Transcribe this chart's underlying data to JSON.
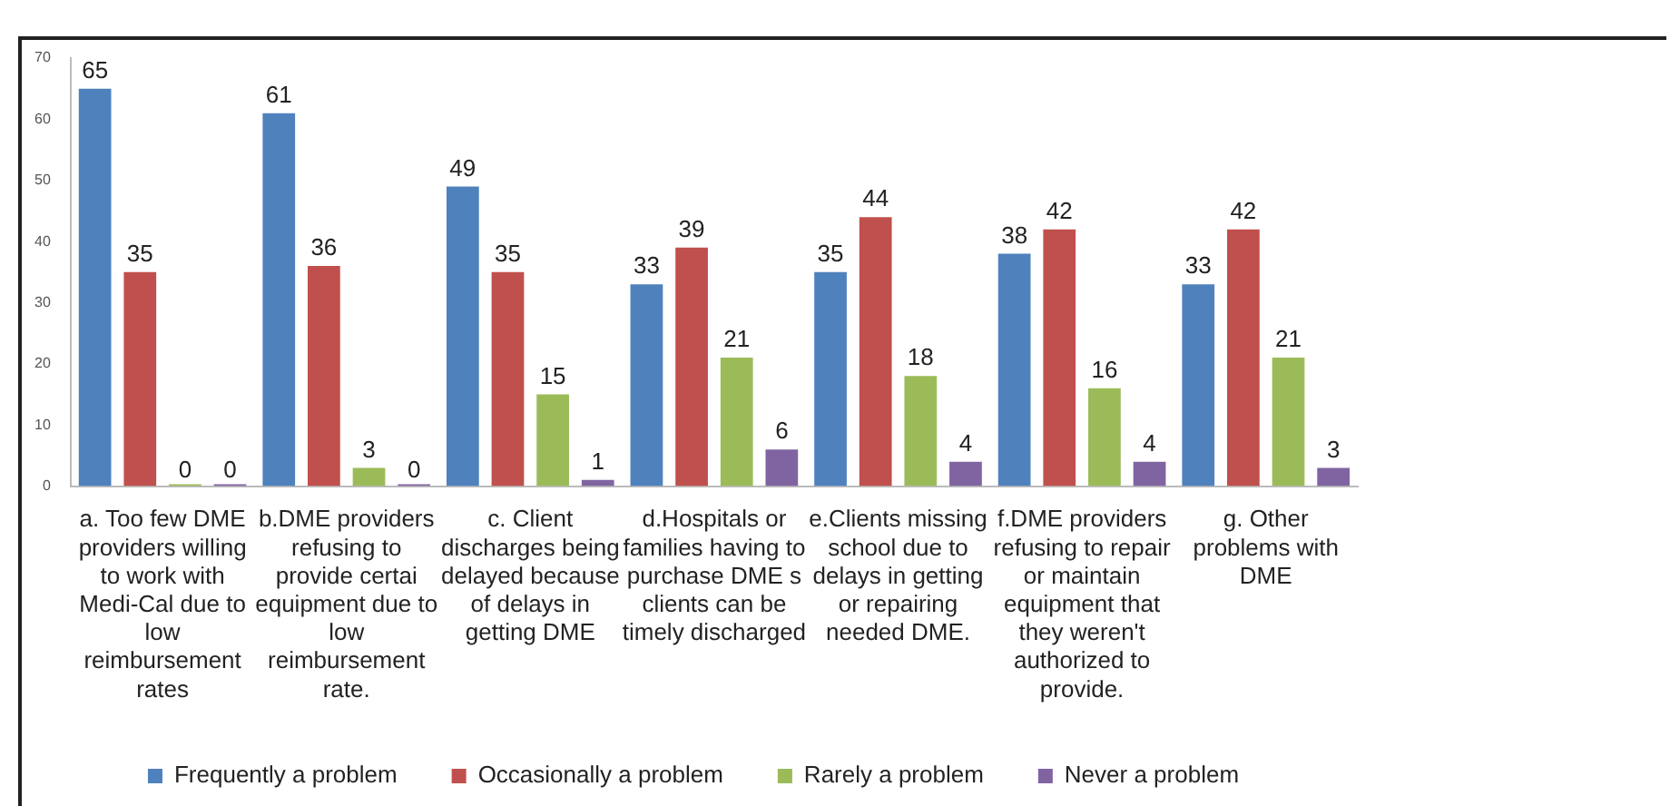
{
  "chart_data": {
    "type": "bar",
    "categories": [
      "a. Too few DME providers willing to work with Medi-Cal due to low reimbursement rates",
      "b.DME providers refusing to provide certai equipment due to low reimbursement rate.",
      "c. Client discharges being delayed because of delays in getting DME",
      "d.Hospitals or families having to purchase DME s clients can be timely discharged",
      "e.Clients missing school due to delays in getting or repairing needed DME.",
      "f.DME providers refusing to repair or maintain equipment that they weren't authorized to provide.",
      "g. Other problems with DME"
    ],
    "series": [
      {
        "name": "Frequently a problem",
        "color": "#4f81bd",
        "values": [
          65,
          61,
          49,
          33,
          35,
          38,
          33
        ]
      },
      {
        "name": "Occasionally a problem",
        "color": "#c0504d",
        "values": [
          35,
          36,
          35,
          39,
          44,
          42,
          42
        ]
      },
      {
        "name": "Rarely a problem",
        "color": "#9bbb59",
        "values": [
          0,
          3,
          15,
          21,
          18,
          16,
          21
        ]
      },
      {
        "name": "Never a problem",
        "color": "#8064a2",
        "values": [
          0,
          0,
          1,
          6,
          4,
          4,
          3
        ]
      }
    ],
    "ylim": [
      0,
      70
    ],
    "yticks": [
      0,
      10,
      20,
      30,
      40,
      50,
      60,
      70
    ],
    "data_labels": true,
    "grid": false,
    "legend": "bottom"
  }
}
